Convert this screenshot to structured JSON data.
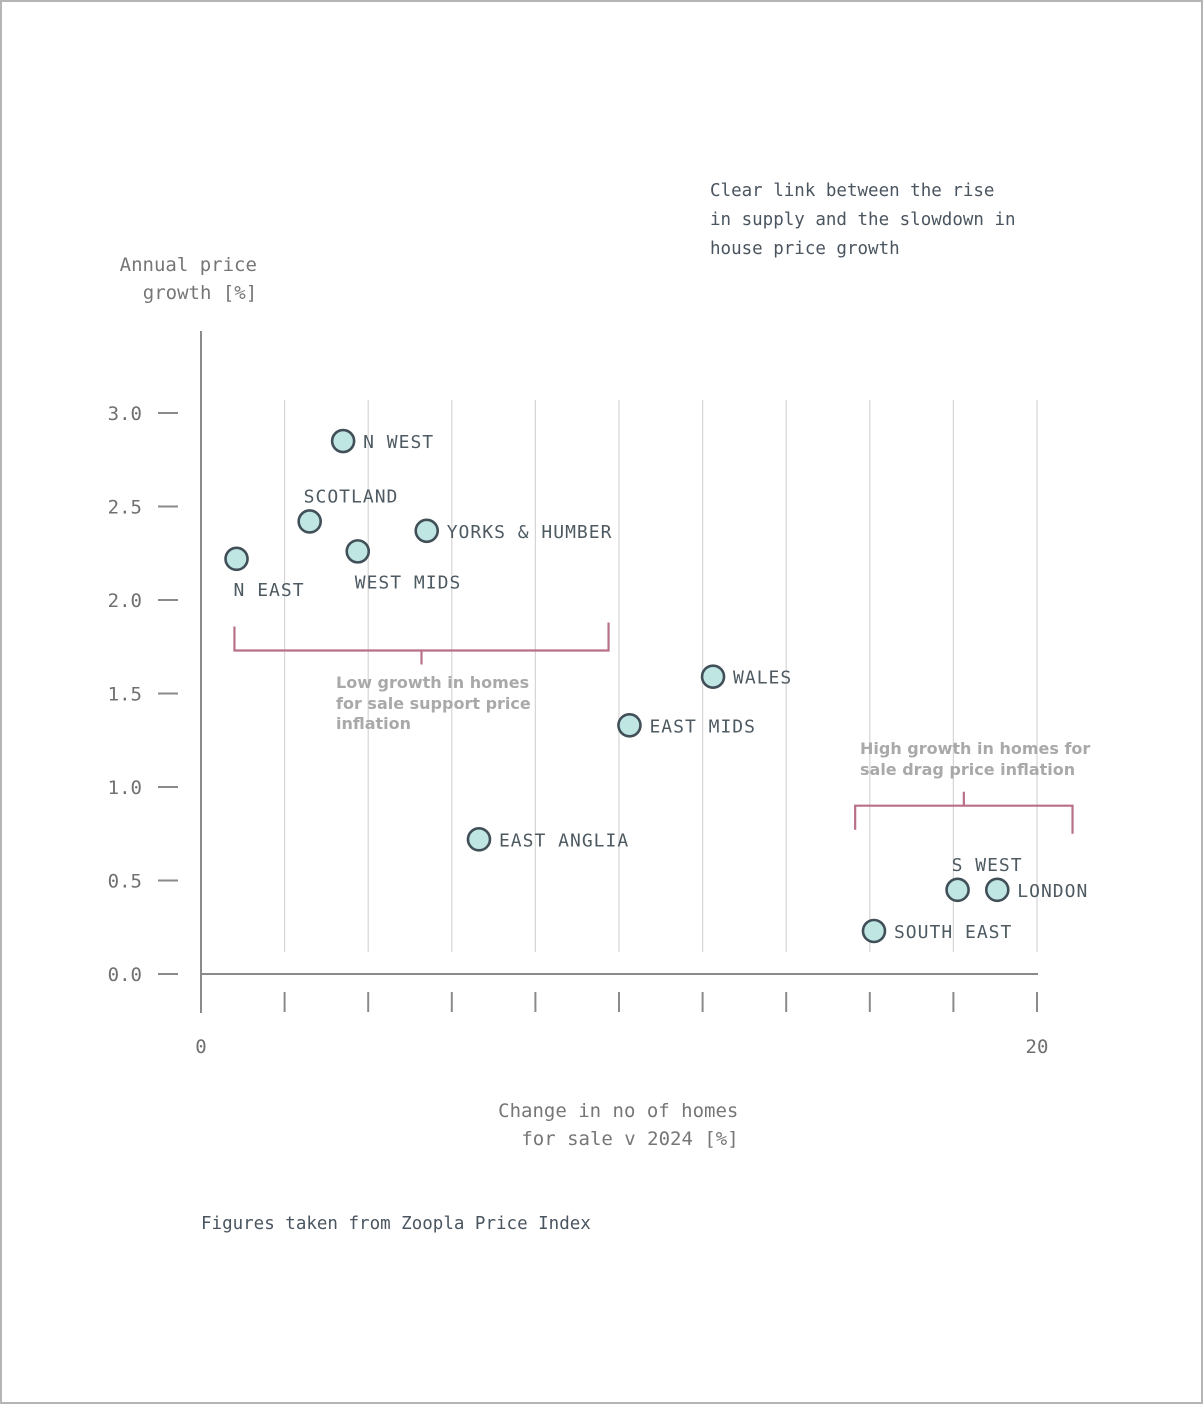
{
  "chart_data": {
    "type": "scatter",
    "title": "",
    "xlabel": [
      "Change in no of homes",
      "for sale v 2024 [%]"
    ],
    "ylabel": [
      "Annual price",
      "growth [%]"
    ],
    "xlim": [
      0,
      20
    ],
    "ylim": [
      0,
      3.0
    ],
    "x_tick_labels": [
      {
        "x": 0,
        "label": "0"
      },
      {
        "x": 20,
        "label": "20"
      }
    ],
    "x_tick_marks": [
      0,
      2,
      4,
      6,
      8,
      10,
      12,
      14,
      16,
      18,
      20
    ],
    "y_ticks": [
      {
        "y": 0.0,
        "label": "0.0"
      },
      {
        "y": 0.5,
        "label": "0.5"
      },
      {
        "y": 1.0,
        "label": "1.0"
      },
      {
        "y": 1.5,
        "label": "1.5"
      },
      {
        "y": 2.0,
        "label": "2.0"
      },
      {
        "y": 2.5,
        "label": "2.5"
      },
      {
        "y": 3.0,
        "label": "3.0"
      }
    ],
    "grid": "vertical",
    "points": [
      {
        "name": "N EAST",
        "x": 0.85,
        "y": 2.22,
        "label_pos": "below"
      },
      {
        "name": "SCOTLAND",
        "x": 2.6,
        "y": 2.42,
        "label_pos": "above"
      },
      {
        "name": "N WEST",
        "x": 3.4,
        "y": 2.85,
        "label_pos": "right"
      },
      {
        "name": "WEST MIDS",
        "x": 3.75,
        "y": 2.26,
        "label_pos": "below"
      },
      {
        "name": "YORKS & HUMBER",
        "x": 5.4,
        "y": 2.37,
        "label_pos": "right"
      },
      {
        "name": "EAST ANGLIA",
        "x": 6.65,
        "y": 0.72,
        "label_pos": "right"
      },
      {
        "name": "EAST MIDS",
        "x": 10.25,
        "y": 1.33,
        "label_pos": "right"
      },
      {
        "name": "WALES",
        "x": 12.25,
        "y": 1.59,
        "label_pos": "right"
      },
      {
        "name": "SOUTH EAST",
        "x": 16.1,
        "y": 0.23,
        "label_pos": "right"
      },
      {
        "name": "S WEST",
        "x": 18.1,
        "y": 0.45,
        "label_pos": "above"
      },
      {
        "name": "LONDON",
        "x": 19.05,
        "y": 0.45,
        "label_pos": "right"
      }
    ],
    "annotations": [
      {
        "text": [
          "Low growth in homes",
          "for sale support price",
          "inflation"
        ],
        "bracket_x": [
          0.8,
          9.75
        ],
        "bracket_y": 1.73,
        "opens": "up"
      },
      {
        "text": [
          "High growth in homes for",
          "sale drag price inflation"
        ],
        "bracket_x": [
          15.65,
          20.85
        ],
        "bracket_y": 0.9,
        "opens": "down"
      }
    ],
    "note": [
      "Clear link between the rise",
      "in supply and the slowdown in",
      "house price growth"
    ],
    "source": "Figures taken from Zoopla Price Index",
    "colors": {
      "point_fill": "#bfe6e3",
      "point_stroke": "#414f58",
      "bracket": "#b86f89",
      "grid": "#d6d6d6",
      "axis": "#8a8a8a"
    }
  }
}
